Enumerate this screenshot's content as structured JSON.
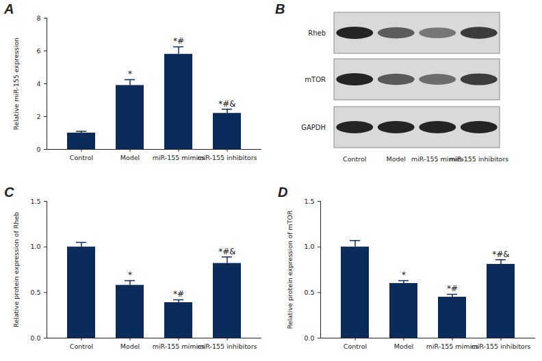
{
  "chart_data": [
    {
      "type": "bar",
      "title": "A",
      "ylabel": "Relative miR-155 expression",
      "categories": [
        "Control",
        "Model",
        "miR-155 mimics",
        "miR-155 inhibitors"
      ],
      "values": [
        1.0,
        3.9,
        5.8,
        2.2
      ],
      "errors": [
        0.1,
        0.35,
        0.45,
        0.25
      ],
      "annotations": [
        null,
        "*",
        "*#",
        "*#&"
      ],
      "color": "#0b2c5a",
      "ylim": [
        0,
        8
      ],
      "yticks": [
        0,
        2,
        4,
        6,
        8
      ]
    },
    {
      "type": "bar",
      "title": "C",
      "ylabel": "Relative protein expression of Rheb",
      "categories": [
        "Control",
        "Model",
        "miR-155 mimics",
        "miR-155 inhibitors"
      ],
      "values": [
        1.0,
        0.58,
        0.39,
        0.82
      ],
      "errors": [
        0.05,
        0.05,
        0.03,
        0.07
      ],
      "annotations": [
        null,
        "*",
        "*#",
        "*#&"
      ],
      "color": "#0b2c5a",
      "ylim": [
        0,
        1.5
      ],
      "yticks": [
        {
          "value": 0,
          "label": "0.0"
        },
        {
          "value": 0.5,
          "label": "0.5"
        },
        {
          "value": 1,
          "label": "1.0"
        },
        {
          "value": 1.5,
          "label": "1.5"
        }
      ]
    },
    {
      "type": "bar",
      "title": "D",
      "ylabel": "Relative protein expression of mTOR",
      "categories": [
        "Control",
        "Model",
        "miR-155 mimics",
        "miR-155 inhibitors"
      ],
      "values": [
        1.0,
        0.6,
        0.45,
        0.81
      ],
      "errors": [
        0.07,
        0.03,
        0.03,
        0.05
      ],
      "annotations": [
        null,
        "*",
        "*#",
        "*#&"
      ],
      "color": "#0b2c5a",
      "ylim": [
        0,
        1.5
      ],
      "yticks": [
        {
          "value": 0,
          "label": "0.0"
        },
        {
          "value": 0.5,
          "label": "0.5"
        },
        {
          "value": 1,
          "label": "1.0"
        },
        {
          "value": 1.5,
          "label": "1.5"
        }
      ]
    }
  ],
  "blot": {
    "title": "B",
    "proteins": [
      "Rheb",
      "mTOR",
      "GAPDH"
    ],
    "lanes": [
      "Control",
      "Model",
      "miR-155 mimics",
      "miR-155 inhibitors"
    ]
  }
}
